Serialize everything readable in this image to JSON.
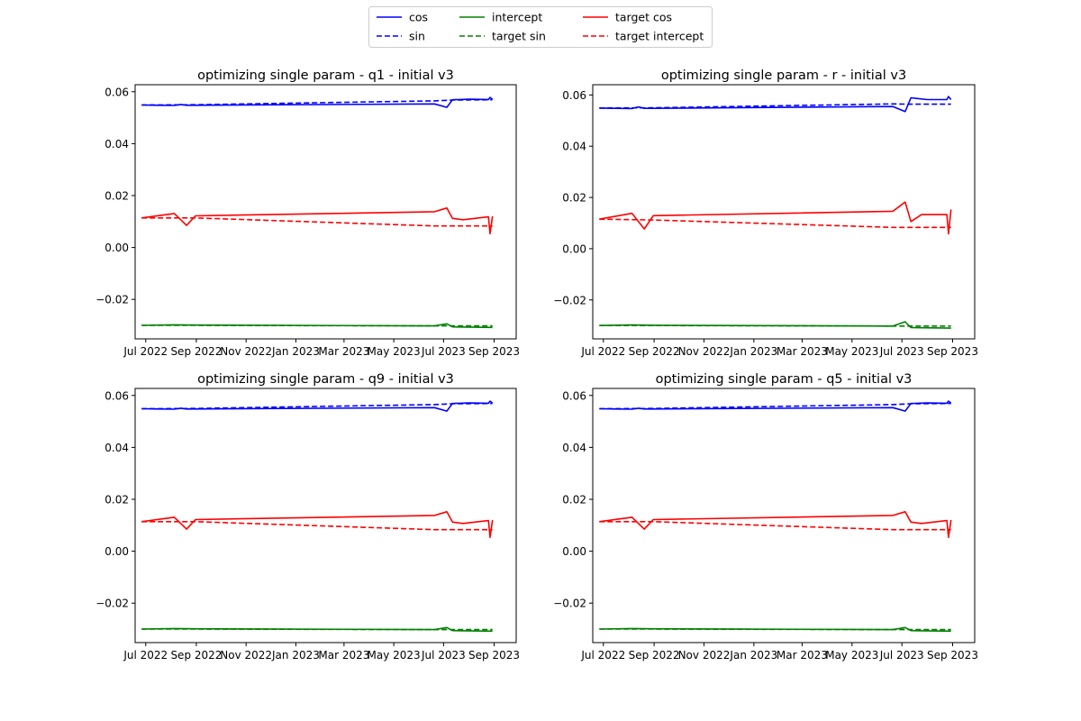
{
  "legend": {
    "placement": "top-center",
    "entries": [
      {
        "label": "cos",
        "color": "#0000ff",
        "dash": "solid"
      },
      {
        "label": "sin",
        "color": "#0000ff",
        "dash": "dashed"
      },
      {
        "label": "intercept",
        "color": "#008000",
        "dash": "solid"
      },
      {
        "label": "target sin",
        "color": "#008000",
        "dash": "dashed"
      },
      {
        "label": "target cos",
        "color": "#ff0000",
        "dash": "solid"
      },
      {
        "label": "target intercept",
        "color": "#ff0000",
        "dash": "dashed"
      }
    ]
  },
  "x_ticks": [
    "Jul 2022",
    "Sep 2022",
    "Nov 2022",
    "Jan 2023",
    "Mar 2023",
    "May 2023",
    "Jul 2023",
    "Sep 2023"
  ],
  "x_tick_dates": [
    "2022-07-01",
    "2022-09-01",
    "2022-11-01",
    "2023-01-01",
    "2023-03-01",
    "2023-05-01",
    "2023-07-01",
    "2023-09-01"
  ],
  "y_ticks": [
    "0.06",
    "0.04",
    "0.02",
    "0.00",
    "−0.02"
  ],
  "y_tick_values": [
    0.06,
    0.04,
    0.02,
    0.0,
    -0.02
  ],
  "chart_data": [
    {
      "type": "line",
      "title": "optimizing single param - q1 - initial v3",
      "xlim": [
        "2022-06-18",
        "2023-09-28"
      ],
      "ylim": [
        -0.0352,
        0.0627
      ],
      "grid": false,
      "series": [
        {
          "name": "cos",
          "color": "#0000ff",
          "dash": "solid",
          "x": [
            "2022-06-26",
            "2022-07-15",
            "2022-08-05",
            "2022-08-13",
            "2022-08-20",
            "2022-08-31",
            "2023-06-20",
            "2023-07-05",
            "2023-07-12",
            "2023-08-01",
            "2023-08-25",
            "2023-08-27",
            "2023-08-30"
          ],
          "y": [
            0.0549,
            0.0548,
            0.0547,
            0.0551,
            0.0548,
            0.0548,
            0.0553,
            0.054,
            0.0569,
            0.0571,
            0.057,
            0.0578,
            0.0571
          ]
        },
        {
          "name": "sin",
          "color": "#0000ff",
          "dash": "dashed",
          "x": [
            "2022-06-26",
            "2022-08-31",
            "2023-06-20",
            "2023-07-12",
            "2023-08-30"
          ],
          "y": [
            0.0549,
            0.055,
            0.0565,
            0.0568,
            0.0569
          ]
        },
        {
          "name": "intercept",
          "color": "#008000",
          "dash": "solid",
          "x": [
            "2022-06-26",
            "2022-08-05",
            "2022-08-31",
            "2023-06-20",
            "2023-07-05",
            "2023-07-12",
            "2023-08-30"
          ],
          "y": [
            -0.03,
            -0.0298,
            -0.0299,
            -0.0302,
            -0.0294,
            -0.0306,
            -0.0308
          ]
        },
        {
          "name": "target sin",
          "color": "#008000",
          "dash": "dashed",
          "x": [
            "2022-06-26",
            "2022-08-31",
            "2023-06-20",
            "2023-08-30"
          ],
          "y": [
            -0.03,
            -0.03,
            -0.0302,
            -0.0302
          ]
        },
        {
          "name": "target cos",
          "color": "#ff0000",
          "dash": "solid",
          "x": [
            "2022-06-26",
            "2022-08-05",
            "2022-08-20",
            "2022-08-31",
            "2023-06-20",
            "2023-07-05",
            "2023-07-12",
            "2023-07-25",
            "2023-08-25",
            "2023-08-27",
            "2023-08-30"
          ],
          "y": [
            0.0114,
            0.0131,
            0.0085,
            0.0122,
            0.0138,
            0.0152,
            0.0112,
            0.0107,
            0.0118,
            0.0053,
            0.012
          ]
        },
        {
          "name": "target intercept",
          "color": "#ff0000",
          "dash": "dashed",
          "x": [
            "2022-06-26",
            "2022-08-31",
            "2023-06-20",
            "2023-08-30"
          ],
          "y": [
            0.0114,
            0.0114,
            0.0083,
            0.0083
          ]
        }
      ]
    },
    {
      "type": "line",
      "title": "optimizing single param - r - initial v3",
      "xlim": [
        "2022-06-18",
        "2023-09-28"
      ],
      "ylim": [
        -0.0352,
        0.064
      ],
      "grid": false,
      "series": [
        {
          "name": "cos",
          "color": "#0000ff",
          "dash": "solid",
          "x": [
            "2022-06-26",
            "2022-07-15",
            "2022-08-05",
            "2022-08-13",
            "2022-08-20",
            "2022-08-31",
            "2023-06-20",
            "2023-07-05",
            "2023-07-12",
            "2023-08-01",
            "2023-08-25",
            "2023-08-27",
            "2023-08-30"
          ],
          "y": [
            0.0549,
            0.0548,
            0.0547,
            0.0553,
            0.0548,
            0.0548,
            0.0555,
            0.0535,
            0.0589,
            0.0582,
            0.0582,
            0.0594,
            0.0582
          ]
        },
        {
          "name": "sin",
          "color": "#0000ff",
          "dash": "dashed",
          "x": [
            "2022-06-26",
            "2022-08-31",
            "2023-06-20",
            "2023-07-12",
            "2023-08-30"
          ],
          "y": [
            0.0549,
            0.055,
            0.0565,
            0.0564,
            0.0564
          ]
        },
        {
          "name": "intercept",
          "color": "#008000",
          "dash": "solid",
          "x": [
            "2022-06-26",
            "2022-08-05",
            "2022-08-31",
            "2023-06-20",
            "2023-07-05",
            "2023-07-12",
            "2023-08-30"
          ],
          "y": [
            -0.03,
            -0.0298,
            -0.0299,
            -0.0302,
            -0.0285,
            -0.0308,
            -0.031
          ]
        },
        {
          "name": "target sin",
          "color": "#008000",
          "dash": "dashed",
          "x": [
            "2022-06-26",
            "2022-08-31",
            "2023-06-20",
            "2023-08-30"
          ],
          "y": [
            -0.03,
            -0.03,
            -0.0302,
            -0.0302
          ]
        },
        {
          "name": "target cos",
          "color": "#ff0000",
          "dash": "solid",
          "x": [
            "2022-06-26",
            "2022-08-05",
            "2022-08-20",
            "2022-08-31",
            "2023-06-20",
            "2023-07-05",
            "2023-07-12",
            "2023-07-25",
            "2023-08-25",
            "2023-08-27",
            "2023-08-30"
          ],
          "y": [
            0.0115,
            0.0138,
            0.0077,
            0.0129,
            0.0146,
            0.0182,
            0.0106,
            0.0133,
            0.0133,
            0.0058,
            0.0153
          ]
        },
        {
          "name": "target intercept",
          "color": "#ff0000",
          "dash": "dashed",
          "x": [
            "2022-06-26",
            "2022-08-31",
            "2023-06-20",
            "2023-08-30"
          ],
          "y": [
            0.0115,
            0.0112,
            0.0083,
            0.0083
          ]
        }
      ]
    },
    {
      "type": "line",
      "title": "optimizing single param - q9 - initial v3",
      "xlim": [
        "2022-06-18",
        "2023-09-28"
      ],
      "ylim": [
        -0.0352,
        0.0627
      ],
      "grid": false,
      "series": [
        {
          "name": "cos",
          "color": "#0000ff",
          "dash": "solid",
          "x": [
            "2022-06-26",
            "2022-07-15",
            "2022-08-05",
            "2022-08-13",
            "2022-08-20",
            "2022-08-31",
            "2023-06-20",
            "2023-07-05",
            "2023-07-12",
            "2023-08-01",
            "2023-08-25",
            "2023-08-27",
            "2023-08-30"
          ],
          "y": [
            0.0549,
            0.0548,
            0.0547,
            0.0551,
            0.0548,
            0.0548,
            0.0553,
            0.054,
            0.0569,
            0.0571,
            0.057,
            0.0578,
            0.0571
          ]
        },
        {
          "name": "sin",
          "color": "#0000ff",
          "dash": "dashed",
          "x": [
            "2022-06-26",
            "2022-08-31",
            "2023-06-20",
            "2023-07-12",
            "2023-08-30"
          ],
          "y": [
            0.0549,
            0.055,
            0.0565,
            0.0568,
            0.0569
          ]
        },
        {
          "name": "intercept",
          "color": "#008000",
          "dash": "solid",
          "x": [
            "2022-06-26",
            "2022-08-05",
            "2022-08-31",
            "2023-06-20",
            "2023-07-05",
            "2023-07-12",
            "2023-08-30"
          ],
          "y": [
            -0.03,
            -0.0298,
            -0.0299,
            -0.0302,
            -0.0294,
            -0.0306,
            -0.0308
          ]
        },
        {
          "name": "target sin",
          "color": "#008000",
          "dash": "dashed",
          "x": [
            "2022-06-26",
            "2022-08-31",
            "2023-06-20",
            "2023-08-30"
          ],
          "y": [
            -0.03,
            -0.03,
            -0.0302,
            -0.0302
          ]
        },
        {
          "name": "target cos",
          "color": "#ff0000",
          "dash": "solid",
          "x": [
            "2022-06-26",
            "2022-08-05",
            "2022-08-20",
            "2022-08-31",
            "2023-06-20",
            "2023-07-05",
            "2023-07-12",
            "2023-07-25",
            "2023-08-25",
            "2023-08-27",
            "2023-08-30"
          ],
          "y": [
            0.0114,
            0.0131,
            0.0085,
            0.0122,
            0.0138,
            0.0152,
            0.0112,
            0.0107,
            0.0118,
            0.0053,
            0.012
          ]
        },
        {
          "name": "target intercept",
          "color": "#ff0000",
          "dash": "dashed",
          "x": [
            "2022-06-26",
            "2022-08-31",
            "2023-06-20",
            "2023-08-30"
          ],
          "y": [
            0.0114,
            0.0114,
            0.0083,
            0.0083
          ]
        }
      ]
    },
    {
      "type": "line",
      "title": "optimizing single param - q5 - initial v3",
      "xlim": [
        "2022-06-18",
        "2023-09-28"
      ],
      "ylim": [
        -0.0352,
        0.0627
      ],
      "grid": false,
      "series": [
        {
          "name": "cos",
          "color": "#0000ff",
          "dash": "solid",
          "x": [
            "2022-06-26",
            "2022-07-15",
            "2022-08-05",
            "2022-08-13",
            "2022-08-20",
            "2022-08-31",
            "2023-06-20",
            "2023-07-05",
            "2023-07-12",
            "2023-08-01",
            "2023-08-25",
            "2023-08-27",
            "2023-08-30"
          ],
          "y": [
            0.0549,
            0.0548,
            0.0547,
            0.0551,
            0.0548,
            0.0548,
            0.0553,
            0.054,
            0.0569,
            0.0571,
            0.057,
            0.0578,
            0.0571
          ]
        },
        {
          "name": "sin",
          "color": "#0000ff",
          "dash": "dashed",
          "x": [
            "2022-06-26",
            "2022-08-31",
            "2023-06-20",
            "2023-07-12",
            "2023-08-30"
          ],
          "y": [
            0.0549,
            0.055,
            0.0565,
            0.0568,
            0.0569
          ]
        },
        {
          "name": "intercept",
          "color": "#008000",
          "dash": "solid",
          "x": [
            "2022-06-26",
            "2022-08-05",
            "2022-08-31",
            "2023-06-20",
            "2023-07-05",
            "2023-07-12",
            "2023-08-30"
          ],
          "y": [
            -0.03,
            -0.0298,
            -0.0299,
            -0.0302,
            -0.0294,
            -0.0306,
            -0.0308
          ]
        },
        {
          "name": "target sin",
          "color": "#008000",
          "dash": "dashed",
          "x": [
            "2022-06-26",
            "2022-08-31",
            "2023-06-20",
            "2023-08-30"
          ],
          "y": [
            -0.03,
            -0.03,
            -0.0302,
            -0.0302
          ]
        },
        {
          "name": "target cos",
          "color": "#ff0000",
          "dash": "solid",
          "x": [
            "2022-06-26",
            "2022-08-05",
            "2022-08-20",
            "2022-08-31",
            "2023-06-20",
            "2023-07-05",
            "2023-07-12",
            "2023-07-25",
            "2023-08-25",
            "2023-08-27",
            "2023-08-30"
          ],
          "y": [
            0.0114,
            0.0131,
            0.0085,
            0.0122,
            0.0138,
            0.0152,
            0.0112,
            0.0107,
            0.0118,
            0.0053,
            0.012
          ]
        },
        {
          "name": "target intercept",
          "color": "#ff0000",
          "dash": "dashed",
          "x": [
            "2022-06-26",
            "2022-08-31",
            "2023-06-20",
            "2023-08-30"
          ],
          "y": [
            0.0114,
            0.0114,
            0.0083,
            0.0083
          ]
        }
      ]
    }
  ]
}
